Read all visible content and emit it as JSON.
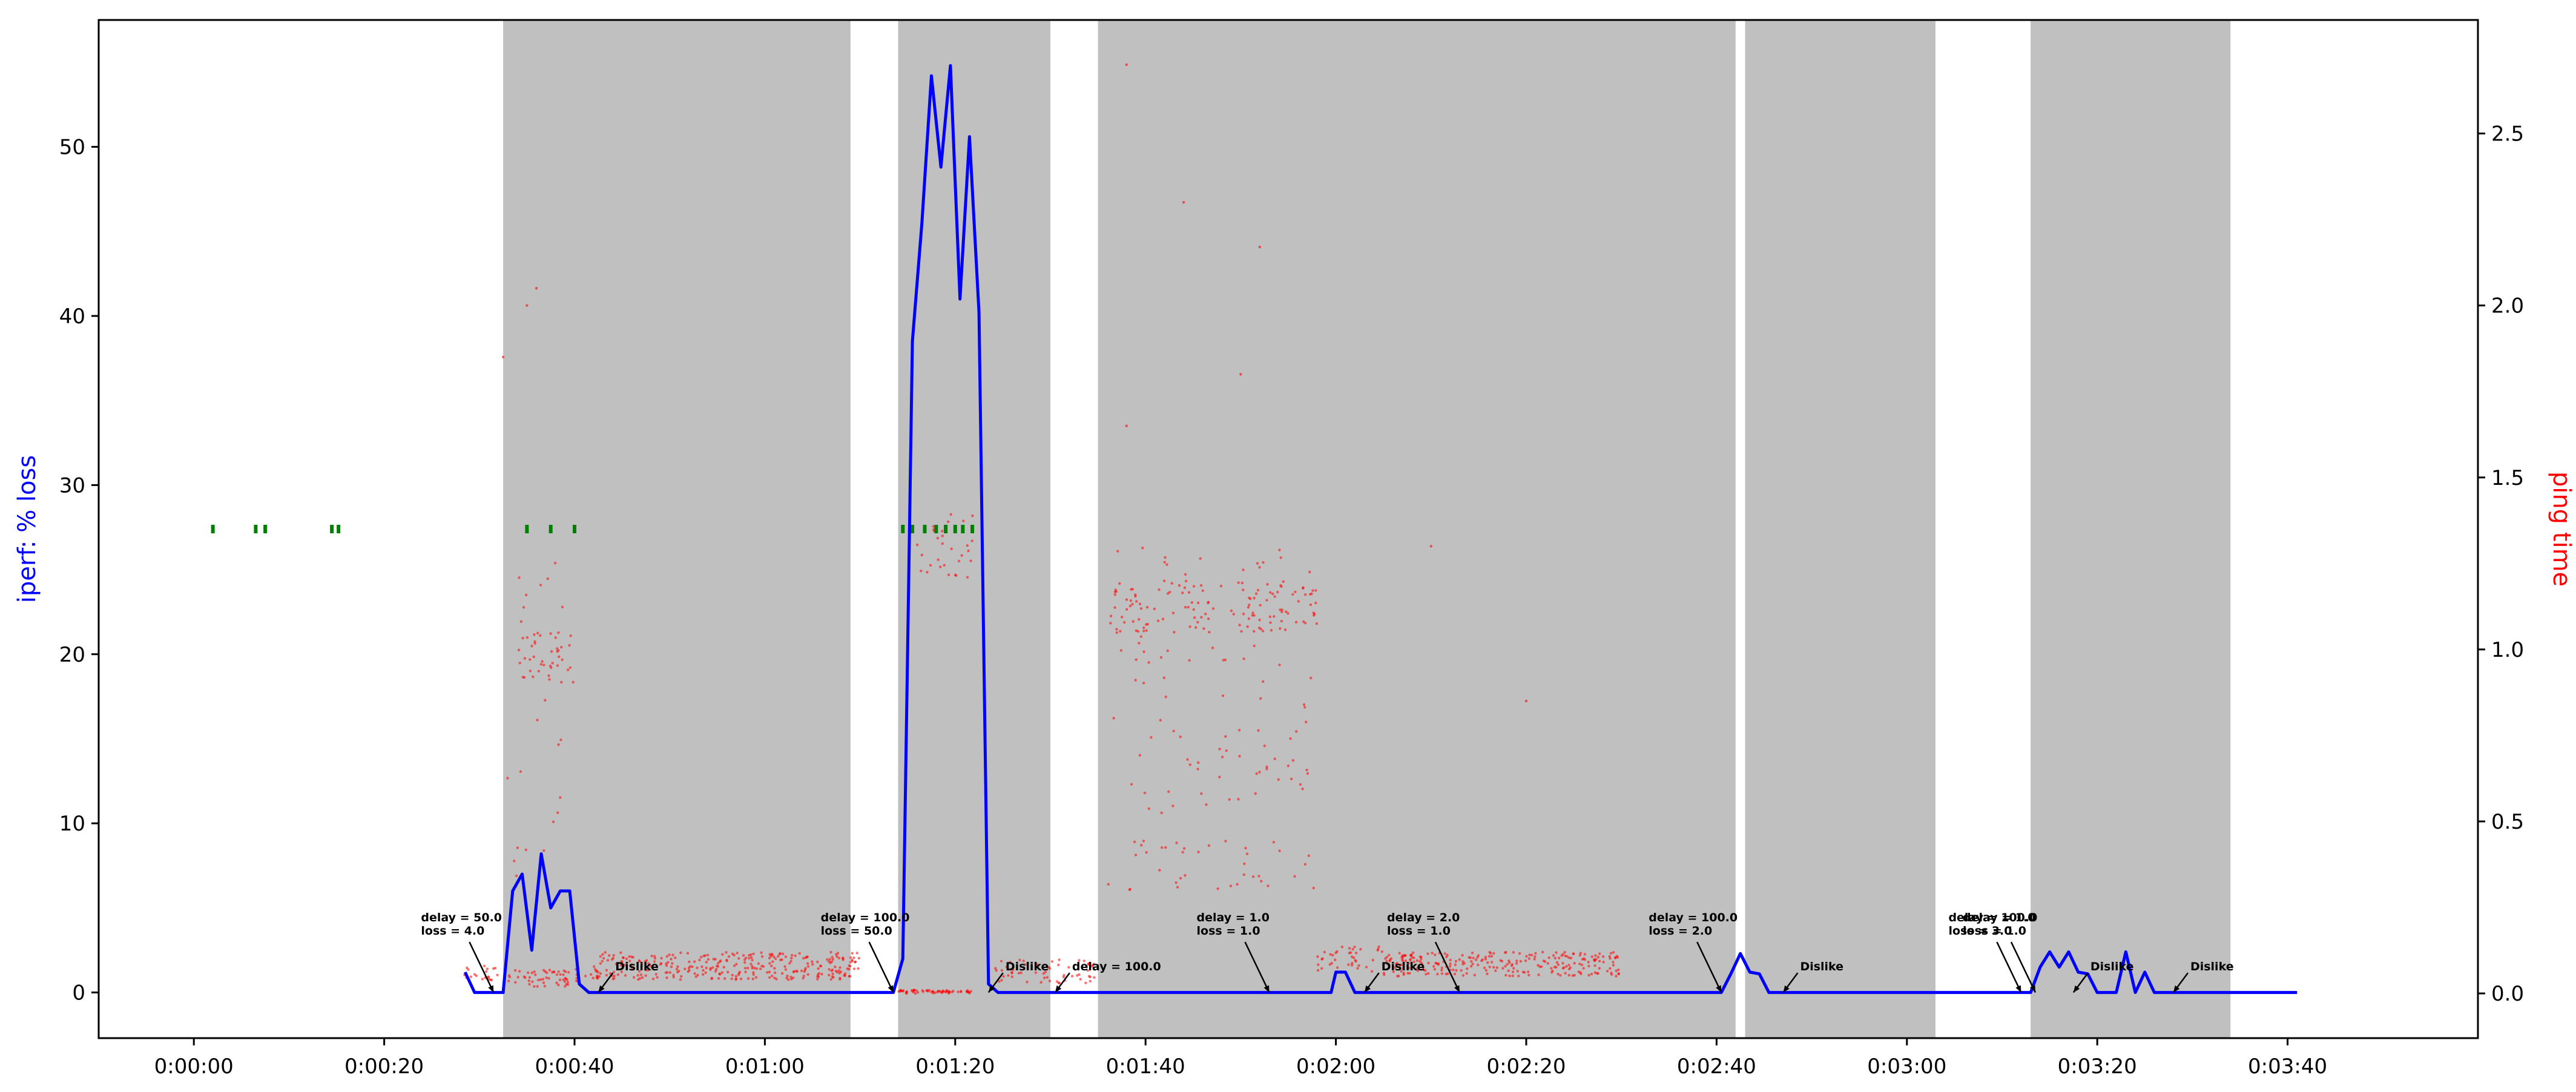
{
  "chart_data": {
    "type": "line",
    "title": "",
    "xlabel": "",
    "ylabel_left": "iperf: % loss",
    "ylabel_right": "ping time",
    "grid": false,
    "xlim": [
      -10,
      240
    ],
    "ylim_left": [
      -2.7,
      57.5
    ],
    "ylim_right": [
      -0.13,
      2.83
    ],
    "x_ticks": [
      {
        "value": 0,
        "label": "0:00:00"
      },
      {
        "value": 20,
        "label": "0:00:20"
      },
      {
        "value": 40,
        "label": "0:00:40"
      },
      {
        "value": 60,
        "label": "0:01:00"
      },
      {
        "value": 80,
        "label": "0:01:20"
      },
      {
        "value": 100,
        "label": "0:01:40"
      },
      {
        "value": 120,
        "label": "0:02:00"
      },
      {
        "value": 140,
        "label": "0:02:20"
      },
      {
        "value": 160,
        "label": "0:02:40"
      },
      {
        "value": 180,
        "label": "0:03:00"
      },
      {
        "value": 200,
        "label": "0:03:20"
      },
      {
        "value": 220,
        "label": "0:03:40"
      }
    ],
    "y_ticks_left": [
      {
        "value": 0,
        "label": "0"
      },
      {
        "value": 10,
        "label": "10"
      },
      {
        "value": 20,
        "label": "20"
      },
      {
        "value": 30,
        "label": "30"
      },
      {
        "value": 40,
        "label": "40"
      },
      {
        "value": 50,
        "label": "50"
      }
    ],
    "y_ticks_right": [
      {
        "value": 0.0,
        "label": "0.0"
      },
      {
        "value": 0.5,
        "label": "0.5"
      },
      {
        "value": 1.0,
        "label": "1.0"
      },
      {
        "value": 1.5,
        "label": "1.5"
      },
      {
        "value": 2.0,
        "label": "2.0"
      },
      {
        "value": 2.5,
        "label": "2.5"
      }
    ],
    "shaded_regions": [
      {
        "x0": 32.5,
        "x1": 69
      },
      {
        "x0": 74,
        "x1": 90
      },
      {
        "x0": 95,
        "x1": 162
      },
      {
        "x0": 163,
        "x1": 183
      },
      {
        "x0": 193,
        "x1": 214
      }
    ],
    "colors": {
      "iperf_line": "#0000ff",
      "ping_points": "#ff0000",
      "green_marks": "#008000",
      "shade": "#c0c0c0"
    },
    "series": [
      {
        "axis": "left",
        "x": [
          28.5,
          29.5,
          30,
          31,
          32,
          32.5,
          33.5,
          34.5,
          35.5,
          36.5,
          37.5,
          38.5,
          39.5,
          40.5,
          41.5,
          42.5,
          43.5,
          44.5,
          46,
          50,
          60,
          70,
          72,
          73.5,
          74.5,
          75.5,
          76.5,
          77.5,
          78.5,
          79.5,
          80.5,
          81.5,
          82.5,
          83.5,
          84.5,
          85.5,
          90,
          100,
          110,
          119.5,
          120,
          121,
          122,
          122.5,
          124,
          130,
          140,
          150,
          160.5,
          161.5,
          162.5,
          163.5,
          164.5,
          165.5,
          166.5,
          167.5,
          168.5,
          170,
          180,
          192,
          193,
          194,
          195,
          196,
          197,
          198,
          199,
          200,
          201,
          202,
          203,
          204,
          205,
          206,
          207,
          208,
          209,
          210,
          211,
          212,
          213,
          214,
          216,
          218,
          220,
          221
        ],
        "values": [
          1.2,
          0,
          0,
          0,
          0,
          0,
          6,
          7,
          2.5,
          8.2,
          5,
          6,
          6,
          0.5,
          0,
          0,
          0,
          0,
          0,
          0,
          0,
          0,
          0,
          0,
          2,
          38.5,
          45.5,
          54.2,
          48.8,
          54.8,
          41,
          50.6,
          40.2,
          0.5,
          0,
          0,
          0,
          0,
          0,
          0,
          1.2,
          1.2,
          0,
          0,
          0,
          0,
          0,
          0,
          0,
          1.1,
          2.3,
          1.2,
          1.1,
          0,
          0,
          0,
          0,
          0,
          0,
          0,
          0,
          1.5,
          2.4,
          1.5,
          2.4,
          1.2,
          1.1,
          0,
          0,
          0,
          2.4,
          0,
          1.2,
          0,
          0,
          0,
          0,
          0,
          0,
          0,
          0,
          0,
          0,
          0,
          0,
          0
        ]
      }
    ],
    "annotations": [
      {
        "lines": [
          "delay = 50.0",
          "loss = 4.0"
        ],
        "x": 31.5,
        "y": 0
      },
      {
        "lines": [
          "Dislike"
        ],
        "x": 42.5,
        "y": 0
      },
      {
        "lines": [
          "delay = 100.0",
          "loss = 50.0"
        ],
        "x": 73.5,
        "y": 0
      },
      {
        "lines": [
          "Dislike"
        ],
        "x": 83.5,
        "y": 0
      },
      {
        "lines": [
          "delay = 100.0"
        ],
        "x": 90.5,
        "y": 0
      },
      {
        "lines": [
          "delay = 1.0",
          "loss = 1.0"
        ],
        "x": 113,
        "y": 0
      },
      {
        "lines": [
          "Dislike"
        ],
        "x": 123,
        "y": 0
      },
      {
        "lines": [
          "delay = 2.0",
          "loss = 1.0"
        ],
        "x": 133,
        "y": 0
      },
      {
        "lines": [
          "delay = 100.0",
          "loss = 2.0"
        ],
        "x": 160.5,
        "y": 0
      },
      {
        "lines": [
          "Dislike"
        ],
        "x": 167,
        "y": 0
      },
      {
        "lines": [
          "delay = 100.0",
          "loss = 3.0"
        ],
        "x": 192,
        "y": 0
      },
      {
        "lines": [
          "delay = 1.0",
          "loss = 1.0"
        ],
        "x": 193.5,
        "y": 0
      },
      {
        "lines": [
          "Dislike"
        ],
        "x": 197.5,
        "y": 0
      },
      {
        "lines": [
          "Dislike"
        ],
        "x": 208,
        "y": 0
      }
    ]
  }
}
